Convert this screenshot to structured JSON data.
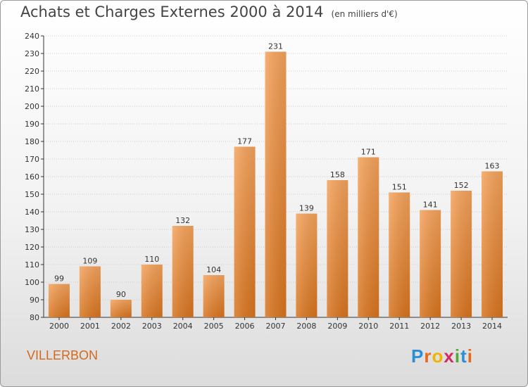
{
  "title": "Achats et Charges Externes 2000 à 2014",
  "subtitle": "(en milliers d'€)",
  "commune": "VILLERBON",
  "logo": {
    "text": "Proxiti",
    "letters": [
      "P",
      "r",
      "o",
      "x",
      "i",
      "t",
      "i"
    ],
    "colors": [
      "#2a8fd6",
      "#e8671c",
      "#f0b400",
      "#d52a5f",
      "#52a83a",
      "#2a8fd6",
      "#e8671c"
    ]
  },
  "colors": {
    "bar_top": "#f5a35c",
    "bar_bottom": "#d8741f",
    "grid": "#cccccc",
    "axis": "#333333"
  },
  "chart_data": {
    "type": "bar",
    "categories": [
      "2000",
      "2001",
      "2002",
      "2003",
      "2004",
      "2005",
      "2006",
      "2007",
      "2008",
      "2009",
      "2010",
      "2011",
      "2012",
      "2013",
      "2014"
    ],
    "values": [
      99,
      109,
      90,
      110,
      132,
      104,
      177,
      231,
      139,
      158,
      171,
      151,
      141,
      152,
      163
    ],
    "ylim": [
      80,
      240
    ],
    "yticks": [
      80,
      90,
      100,
      110,
      120,
      130,
      140,
      150,
      160,
      170,
      180,
      190,
      200,
      210,
      220,
      230,
      240
    ],
    "grid": true,
    "xlabel": "",
    "ylabel": ""
  }
}
